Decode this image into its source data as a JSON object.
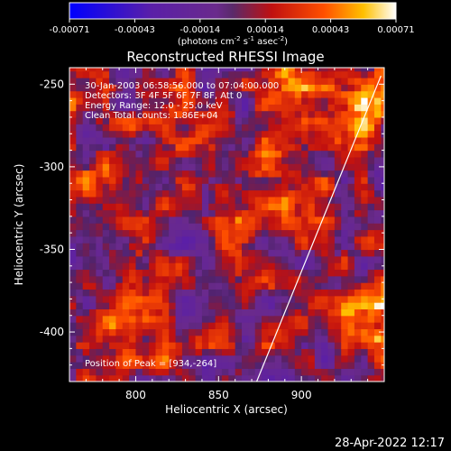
{
  "chart_data": {
    "type": "heatmap",
    "title": "Reconstructed RHESSI Image",
    "xlabel": "Heliocentric X (arcsec)",
    "ylabel": "Heliocentric Y (arcsec)",
    "xlim": [
      760,
      950
    ],
    "ylim": [
      -430,
      -240
    ],
    "x_ticks": [
      800,
      850,
      900
    ],
    "y_ticks": [
      -400,
      -350,
      -300,
      -250
    ],
    "colorbar": {
      "ticks": [
        "-0.00071",
        "-0.00043",
        "-0.00014",
        "0.00014",
        "0.00043",
        "0.00071"
      ],
      "unit_main": "(photons cm",
      "unit_exp1": "-2",
      "unit_mid": " s",
      "unit_exp2": "-1",
      "unit_end": " asec",
      "unit_exp3": "-2",
      "unit_close": ")",
      "range": [
        -0.00071,
        0.00071
      ]
    },
    "annotations": [
      "30-Jan-2003 06:58:56.000 to 07:04:00.000",
      "Detectors: 3F 4F 5F 6F 7F 8F, Att 0",
      "Energy Range: 12.0 - 25.0 keV",
      "Clean   Total counts: 1.86E+04"
    ],
    "peak_label": "Position of Peak = [934,-264]",
    "peak": [
      934,
      -264
    ],
    "limb_line": [
      [
        873,
        -430
      ],
      [
        948,
        -245
      ]
    ],
    "hotspots": [
      {
        "x": 934,
        "y": -264,
        "value": 0.00071
      },
      {
        "x": 940,
        "y": -390,
        "value": 0.00062
      },
      {
        "x": 780,
        "y": -310,
        "value": 0.00045
      },
      {
        "x": 905,
        "y": -330,
        "value": 0.00038
      },
      {
        "x": 815,
        "y": -270,
        "value": 0.00035
      },
      {
        "x": 890,
        "y": -248,
        "value": 0.0004
      },
      {
        "x": 800,
        "y": -375,
        "value": 0.00042
      },
      {
        "x": 880,
        "y": -300,
        "value": 0.00033
      },
      {
        "x": 770,
        "y": -415,
        "value": 0.00028
      },
      {
        "x": 825,
        "y": -410,
        "value": 0.00025
      },
      {
        "x": 850,
        "y": -330,
        "value": 0.0002
      },
      {
        "x": 760,
        "y": -260,
        "value": 0.0003
      }
    ]
  },
  "timestamp": "28-Apr-2022 12:17"
}
